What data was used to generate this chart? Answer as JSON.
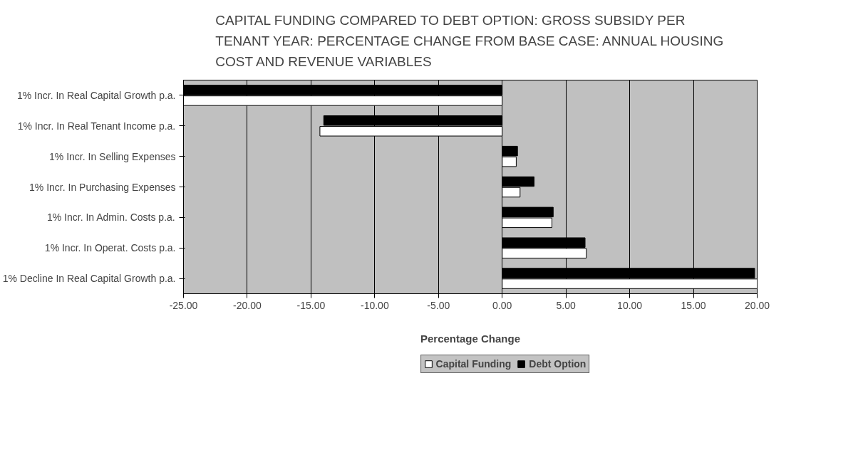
{
  "chart_data": {
    "type": "bar",
    "orientation": "horizontal",
    "title": "CAPITAL FUNDING COMPARED TO DEBT OPTION: GROSS SUBSIDY PER\nTENANT YEAR: PERCENTAGE CHANGE FROM BASE CASE: ANNUAL HOUSING\nCOST AND REVENUE VARIABLES",
    "xlabel": "Percentage Change",
    "categories": [
      "1% Incr. In Real Capital Growth p.a.",
      "1% Incr. In Real Tenant Income p.a.",
      "1% Incr. In Selling Expenses",
      "1% Incr. In Purchasing Expenses",
      "1% Incr. In Admin. Costs p.a.",
      "1% Incr. In Operat. Costs p.a.",
      "1% Decline In Real Capital Growth p.a."
    ],
    "series": [
      {
        "name": "Capital Funding",
        "color": "#ffffff",
        "values": [
          -25.0,
          -14.3,
          1.1,
          1.4,
          3.9,
          6.6,
          20.0
        ]
      },
      {
        "name": "Debt Option",
        "color": "#000000",
        "values": [
          -25.0,
          -14.0,
          1.2,
          2.5,
          4.0,
          6.5,
          19.8
        ]
      }
    ],
    "xlim": [
      -25,
      20
    ],
    "xticks": [
      {
        "value": -25,
        "label": "-25.00"
      },
      {
        "value": -20,
        "label": "-20.00"
      },
      {
        "value": -15,
        "label": "-15.00"
      },
      {
        "value": -10,
        "label": "-10.00"
      },
      {
        "value": -5,
        "label": "-5.00"
      },
      {
        "value": 0,
        "label": "0.00"
      },
      {
        "value": 5,
        "label": "5.00"
      },
      {
        "value": 10,
        "label": "10.00"
      },
      {
        "value": 15,
        "label": "15.00"
      },
      {
        "value": 20,
        "label": "20.00"
      }
    ],
    "grid": "x",
    "legend": "bottom"
  }
}
